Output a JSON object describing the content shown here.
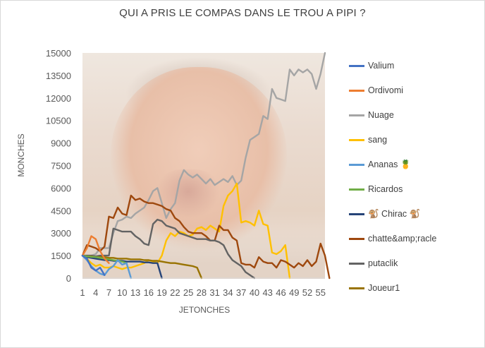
{
  "chart_data": {
    "type": "line",
    "title": "QUI A PRIS LE COMPAS DANS LE TROU A PIPI ?",
    "xlabel": "JETONCHES",
    "ylabel": "MONCHES",
    "xlim": [
      1,
      56
    ],
    "ylim": [
      0,
      15000
    ],
    "y_ticks": [
      "0",
      "1500",
      "3000",
      "4500",
      "6000",
      "7500",
      "9000",
      "10500",
      "12000",
      "13500",
      "15000"
    ],
    "x_ticks": [
      "1",
      "4",
      "7",
      "10",
      "13",
      "16",
      "19",
      "22",
      "25",
      "28",
      "31",
      "34",
      "37",
      "40",
      "43",
      "46",
      "49",
      "52",
      "55"
    ],
    "grid": false,
    "legend": "right",
    "series": [
      {
        "name": "Valium",
        "color": "#4472c4",
        "values": [
          1500,
          1300,
          700,
          500,
          700,
          200
        ]
      },
      {
        "name": "Ordivomi",
        "color": "#ed7d31",
        "values": [
          1500,
          2000,
          2800,
          2600,
          1800,
          1300,
          1000
        ]
      },
      {
        "name": "Nuage",
        "color": "#a5a5a5",
        "values": [
          1500,
          1400,
          1500,
          1600,
          2000,
          2000,
          2000,
          3000,
          3800,
          3900,
          4100,
          4000,
          4300,
          4500,
          4700,
          5200,
          5800,
          6000,
          5000,
          4000,
          4600,
          5000,
          6500,
          7200,
          6900,
          6700,
          6900,
          6600,
          6300,
          6600,
          6200,
          6400,
          6600,
          6400,
          6800,
          6200,
          6500,
          8000,
          9200,
          9400,
          9600,
          10800,
          10600,
          12600,
          12000,
          11900,
          11800,
          13900,
          13500,
          13900,
          13700,
          13900,
          13600,
          12600,
          13600,
          15000
        ]
      },
      {
        "name": "sang",
        "color": "#ffc000",
        "values": [
          1500,
          1300,
          1000,
          800,
          900,
          700,
          700,
          800,
          700,
          600,
          700,
          700,
          800,
          900,
          1000,
          1200,
          1100,
          1000,
          1500,
          2500,
          3000,
          2800,
          3100,
          3000,
          2800,
          2900,
          3300,
          3400,
          3200,
          3500,
          3300,
          3100,
          4800,
          5500,
          5800,
          6300,
          3700,
          3800,
          3700,
          3500,
          4500,
          3600,
          3500,
          1700,
          1600,
          1800,
          2200,
          0
        ]
      },
      {
        "name": "Ananas 🍍",
        "color": "#5b9bd5",
        "values": [
          1500,
          1200,
          800,
          500,
          300,
          200,
          600,
          800,
          1200,
          900,
          1000,
          0
        ]
      },
      {
        "name": "Ricardos",
        "color": "#70ad47",
        "values": [
          1500,
          1450,
          1420,
          1400,
          1350,
          1300,
          1250,
          1200,
          1150,
          1100,
          1000
        ]
      },
      {
        "name": "🐒 Chirac 🐒",
        "color": "#264478",
        "values": [
          1500,
          1400,
          1350,
          1300,
          1250,
          1200,
          1200,
          1150,
          1150,
          1150,
          1100,
          1100,
          1100,
          1100,
          1050,
          1050,
          1000,
          1000,
          0
        ]
      },
      {
        "name": "chatte&amp;racle",
        "color": "#9e480e",
        "values": [
          1500,
          2200,
          2100,
          2000,
          1800,
          2100,
          4100,
          4000,
          4700,
          4300,
          4200,
          5500,
          5200,
          5300,
          5100,
          5000,
          5000,
          4900,
          4800,
          4600,
          4500,
          4000,
          3800,
          3400,
          3100,
          3000,
          3000,
          3000,
          2800,
          2500,
          2500,
          3500,
          3200,
          3200,
          2700,
          2500,
          1000,
          900,
          900,
          700,
          1400,
          1100,
          1000,
          1000,
          700,
          1200,
          1100,
          900,
          700,
          1000,
          800,
          1200,
          800,
          1100,
          2300,
          1500,
          0
        ]
      },
      {
        "name": "putaclik",
        "color": "#636363",
        "values": [
          1500,
          1500,
          1500,
          1450,
          1500,
          1500,
          1500,
          3300,
          3200,
          3100,
          3100,
          3100,
          2800,
          2600,
          2300,
          2200,
          3600,
          3900,
          3800,
          3500,
          3400,
          3300,
          3000,
          2900,
          2800,
          2700,
          2600,
          2600,
          2600,
          2500,
          2500,
          2400,
          2200,
          1600,
          1200,
          1000,
          800,
          400,
          200,
          0
        ]
      },
      {
        "name": "Joueur1",
        "color": "#997300",
        "values": [
          1500,
          1450,
          1450,
          1400,
          1400,
          1400,
          1350,
          1350,
          1300,
          1300,
          1300,
          1250,
          1250,
          1250,
          1200,
          1200,
          1150,
          1150,
          1100,
          1050,
          1000,
          1000,
          950,
          900,
          850,
          800,
          700,
          0
        ]
      }
    ]
  }
}
